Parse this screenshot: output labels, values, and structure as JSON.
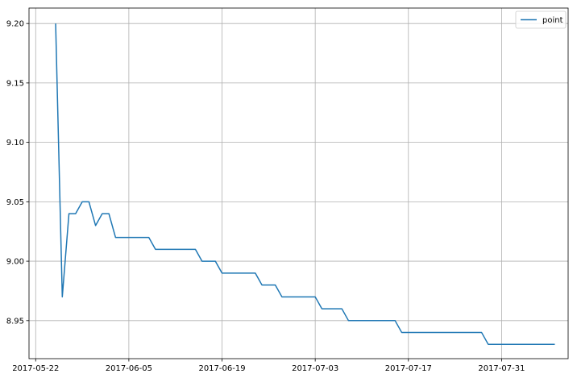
{
  "chart_data": {
    "type": "line",
    "title": "",
    "xlabel": "",
    "ylabel": "",
    "grid": true,
    "legend_position": "top-right",
    "colors": {
      "line": "#1f77b4",
      "grid": "#b0b0b0",
      "axis": "#000000",
      "background": "#ffffff"
    },
    "x_range": [
      "2017-05-21",
      "2017-08-10"
    ],
    "ylim": [
      8.918,
      9.213
    ],
    "x_ticks": [
      {
        "date": "2017-05-22",
        "label": "2017-05-22"
      },
      {
        "date": "2017-06-05",
        "label": "2017-06-05"
      },
      {
        "date": "2017-06-19",
        "label": "2017-06-19"
      },
      {
        "date": "2017-07-03",
        "label": "2017-07-03"
      },
      {
        "date": "2017-07-17",
        "label": "2017-07-17"
      },
      {
        "date": "2017-07-31",
        "label": "2017-07-31"
      }
    ],
    "y_ticks": [
      {
        "value": 8.95,
        "label": "8.95"
      },
      {
        "value": 9.0,
        "label": "9.00"
      },
      {
        "value": 9.05,
        "label": "9.05"
      },
      {
        "value": 9.1,
        "label": "9.10"
      },
      {
        "value": 9.15,
        "label": "9.15"
      },
      {
        "value": 9.2,
        "label": "9.20"
      }
    ],
    "series": [
      {
        "name": "point",
        "x": [
          "2017-05-25",
          "2017-05-26",
          "2017-05-27",
          "2017-05-28",
          "2017-05-29",
          "2017-05-30",
          "2017-05-31",
          "2017-06-01",
          "2017-06-02",
          "2017-06-03",
          "2017-06-08",
          "2017-06-09",
          "2017-06-15",
          "2017-06-16",
          "2017-06-17",
          "2017-06-18",
          "2017-06-19",
          "2017-06-24",
          "2017-06-25",
          "2017-06-27",
          "2017-06-28",
          "2017-07-03",
          "2017-07-04",
          "2017-07-07",
          "2017-07-08",
          "2017-07-15",
          "2017-07-16",
          "2017-07-28",
          "2017-07-29",
          "2017-08-08"
        ],
        "values": [
          9.2,
          8.97,
          9.04,
          9.04,
          9.05,
          9.05,
          9.03,
          9.04,
          9.04,
          9.02,
          9.02,
          9.01,
          9.01,
          9.0,
          9.0,
          9.0,
          8.99,
          8.99,
          8.98,
          8.98,
          8.97,
          8.97,
          8.96,
          8.96,
          8.95,
          8.95,
          8.94,
          8.94,
          8.93,
          8.93
        ]
      }
    ]
  }
}
